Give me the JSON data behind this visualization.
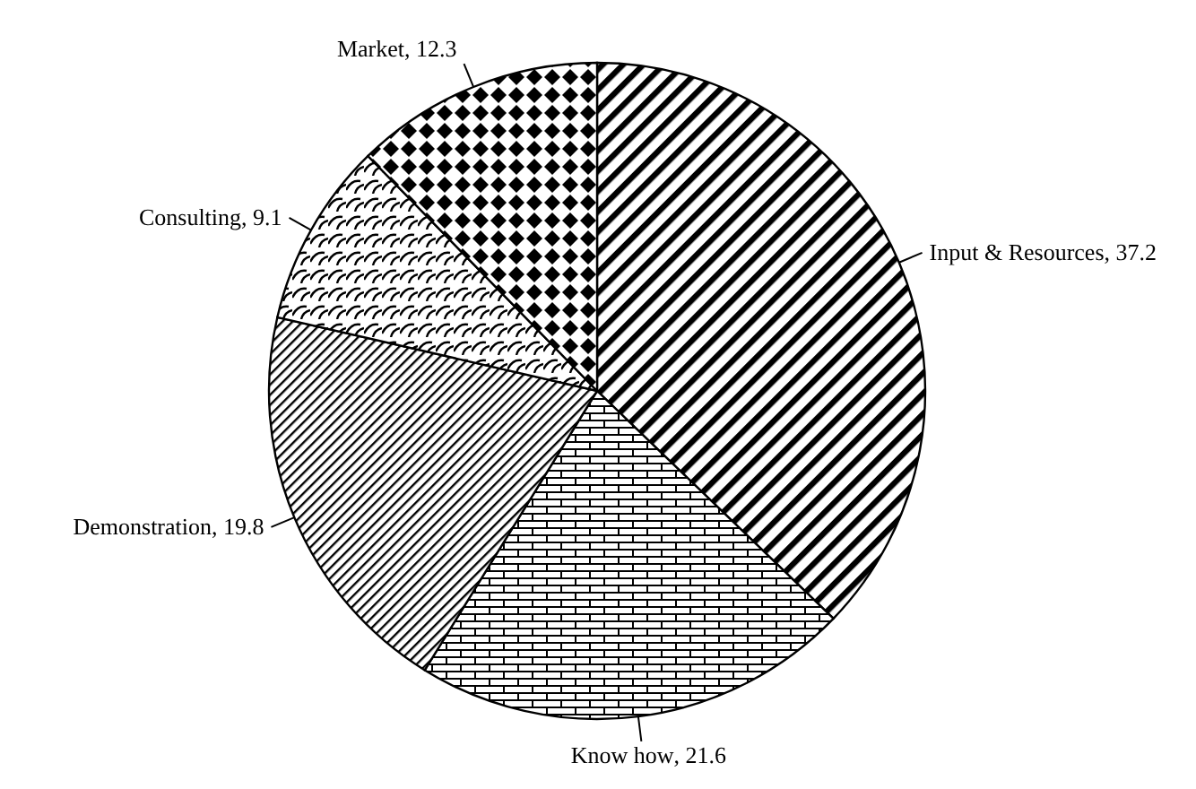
{
  "chart_data": {
    "type": "pie",
    "categories": [
      "Input & Resources",
      "Know how",
      "Demonstration",
      "Consulting",
      "Market"
    ],
    "values": [
      37.2,
      21.6,
      19.8,
      9.1,
      12.3
    ],
    "value_labels": [
      ", 37.2",
      ", 21.6",
      ", 19.8",
      ", 9.1",
      ", 12.3"
    ]
  }
}
